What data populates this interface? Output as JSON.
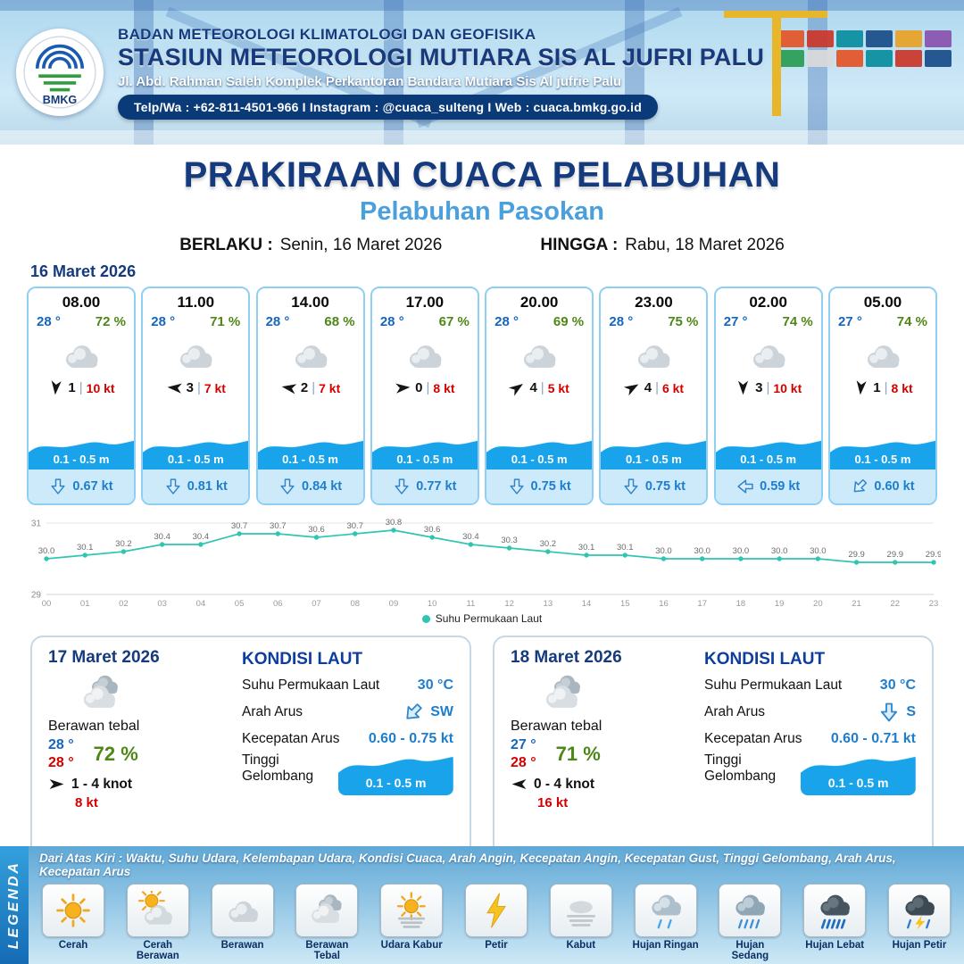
{
  "colors": {
    "navy": "#153a7d",
    "blue": "#4aa0dc",
    "tempblue": "#1566c0",
    "green": "#4e8718",
    "red": "#d40000",
    "cardborder": "#8fd0f2",
    "footblue": "#cdeafb",
    "curblue": "#1e7ece",
    "teal": "#2fc5b0",
    "wave": "#18a3ea"
  },
  "header": {
    "logo_label": "BMKG",
    "org": "BADAN METEOROLOGI KLIMATOLOGI DAN GEOFISIKA",
    "station": "STASIUN METEOROLOGI MUTIARA SIS AL JUFRI PALU",
    "address": "Jl. Abd. Rahman Saleh Komplek Perkantoran Bandara Mutiara Sis Al jufrie Palu",
    "contact": "Telp/Wa : +62-811-4501-966  I  Instagram : @cuaca_sulteng  I  Web : cuaca.bmkg.go.id"
  },
  "title": {
    "main": "PRAKIRAAN CUACA PELABUHAN",
    "subtitle": "Pelabuhan Pasokan"
  },
  "validity": {
    "berlaku_label": "BERLAKU :",
    "berlaku_value": "Senin, 16 Maret 2026",
    "hingga_label": "HINGGA :",
    "hingga_value": "Rabu, 18 Maret 2026"
  },
  "day1": {
    "date": "16 Maret 2026",
    "cards": [
      {
        "time": "08.00",
        "temp": "28 °",
        "rh": "72 %",
        "icon": "berawan",
        "wind_deg": 95,
        "wind_speed": "1",
        "gust": "10 kt",
        "wave": "0.1 - 0.5 m",
        "cur_deg": 0,
        "cur_speed": "0.67 kt"
      },
      {
        "time": "11.00",
        "temp": "28 °",
        "rh": "71 %",
        "icon": "berawan",
        "wind_deg": 185,
        "wind_speed": "3",
        "gust": "7 kt",
        "wave": "0.1 - 0.5 m",
        "cur_deg": 0,
        "cur_speed": "0.81 kt"
      },
      {
        "time": "14.00",
        "temp": "28 °",
        "rh": "68 %",
        "icon": "berawan",
        "wind_deg": 190,
        "wind_speed": "2",
        "gust": "7 kt",
        "wave": "0.1 - 0.5 m",
        "cur_deg": 0,
        "cur_speed": "0.84 kt"
      },
      {
        "time": "17.00",
        "temp": "28 °",
        "rh": "67 %",
        "icon": "berawan",
        "wind_deg": 355,
        "wind_speed": "0",
        "gust": "8 kt",
        "wave": "0.1 - 0.5 m",
        "cur_deg": 0,
        "cur_speed": "0.77 kt"
      },
      {
        "time": "20.00",
        "temp": "28 °",
        "rh": "69 %",
        "icon": "berawan",
        "wind_deg": 325,
        "wind_speed": "4",
        "gust": "5 kt",
        "wave": "0.1 - 0.5 m",
        "cur_deg": 0,
        "cur_speed": "0.75 kt"
      },
      {
        "time": "23.00",
        "temp": "28 °",
        "rh": "75 %",
        "icon": "berawan",
        "wind_deg": 330,
        "wind_speed": "4",
        "gust": "6 kt",
        "wave": "0.1 - 0.5 m",
        "cur_deg": 0,
        "cur_speed": "0.75 kt"
      },
      {
        "time": "02.00",
        "temp": "27 °",
        "rh": "74 %",
        "icon": "berawan",
        "wind_deg": 90,
        "wind_speed": "3",
        "gust": "10 kt",
        "wave": "0.1 - 0.5 m",
        "cur_deg": 90,
        "cur_speed": "0.59 kt"
      },
      {
        "time": "05.00",
        "temp": "27 °",
        "rh": "74 %",
        "icon": "berawan",
        "wind_deg": 95,
        "wind_speed": "1",
        "gust": "8 kt",
        "wave": "0.1 - 0.5 m",
        "cur_deg": 45,
        "cur_speed": "0.60 kt"
      }
    ]
  },
  "chart_data": {
    "type": "line",
    "series_name": "Suhu Permukaan Laut",
    "x": [
      "00",
      "01",
      "02",
      "03",
      "04",
      "05",
      "06",
      "07",
      "08",
      "09",
      "10",
      "11",
      "12",
      "13",
      "14",
      "15",
      "16",
      "17",
      "18",
      "19",
      "20",
      "21",
      "22",
      "23"
    ],
    "values": [
      30.0,
      30.1,
      30.2,
      30.4,
      30.4,
      30.7,
      30.7,
      30.6,
      30.7,
      30.8,
      30.6,
      30.4,
      30.3,
      30.2,
      30.1,
      30.1,
      30.0,
      30.0,
      30.0,
      30.0,
      30.0,
      29.9,
      29.9,
      29.9
    ],
    "ylim": [
      29,
      31
    ],
    "yticks": [
      29,
      31
    ],
    "line_color": "#2fc5b0",
    "grid": true,
    "legend_position": "bottom"
  },
  "day2": {
    "date": "17 Maret 2026",
    "icon": "berawan-tebal",
    "condition": "Berawan tebal",
    "temp_low": "28 °",
    "temp_high": "28 °",
    "rh": "72 %",
    "wind_deg": 0,
    "wind_range": "1  - 4 knot",
    "gust": "8 kt",
    "sea": {
      "title": "KONDISI LAUT",
      "sst_label": "Suhu Permukaan Laut",
      "sst_value": "30 °C",
      "current_dir_label": "Arah Arus",
      "current_dir": "SW",
      "current_dir_deg": 45,
      "current_speed_label": "Kecepatan Arus",
      "current_speed": "0.60  - 0.75 kt",
      "wave_label": "Tinggi Gelombang",
      "wave_value": "0.1 - 0.5 m"
    }
  },
  "day3": {
    "date": "18 Maret 2026",
    "icon": "berawan-tebal",
    "condition": "Berawan tebal",
    "temp_low": "27 °",
    "temp_high": "28 °",
    "rh": "71 %",
    "wind_deg": 180,
    "wind_range": "0  - 4 knot",
    "gust": "16 kt",
    "sea": {
      "title": "KONDISI LAUT",
      "sst_label": "Suhu Permukaan Laut",
      "sst_value": "30 °C",
      "current_dir_label": "Arah Arus",
      "current_dir": "S",
      "current_dir_deg": 0,
      "current_speed_label": "Kecepatan Arus",
      "current_speed": "0.60  - 0.71 kt",
      "wave_label": "Tinggi Gelombang",
      "wave_value": "0.1 - 0.5 m"
    }
  },
  "legend": {
    "strip_label": "LEGENDA",
    "header": "Dari Atas Kiri : Waktu, Suhu Udara, Kelembapan Udara, Kondisi Cuaca, Arah Angin, Kecepatan Angin, Kecepatan Gust, Tinggi Gelombang, Arah Arus, Kecepatan Arus",
    "items": [
      {
        "label": "Cerah",
        "icon": "cerah"
      },
      {
        "label": "Cerah Berawan",
        "icon": "cerah-berawan"
      },
      {
        "label": "Berawan",
        "icon": "berawan"
      },
      {
        "label": "Berawan Tebal",
        "icon": "berawan-tebal"
      },
      {
        "label": "Udara Kabur",
        "icon": "udara-kabur"
      },
      {
        "label": "Petir",
        "icon": "petir"
      },
      {
        "label": "Kabut",
        "icon": "kabut"
      },
      {
        "label": "Hujan Ringan",
        "icon": "hujan-ringan"
      },
      {
        "label": "Hujan Sedang",
        "icon": "hujan-sedang"
      },
      {
        "label": "Hujan Lebat",
        "icon": "hujan-lebat"
      },
      {
        "label": "Hujan Petir",
        "icon": "hujan-petir"
      }
    ]
  }
}
